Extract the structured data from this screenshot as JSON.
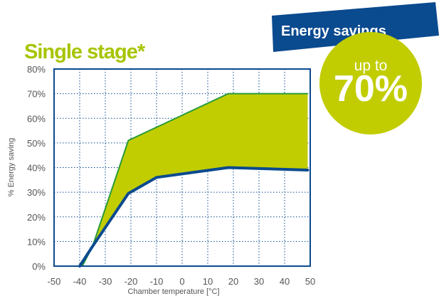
{
  "banner": {
    "text": "Energy savings",
    "color": "#0a4a8f"
  },
  "badge": {
    "prefix": "up to",
    "value": "70%",
    "color": "#c1cd00"
  },
  "chart_data": {
    "type": "area",
    "title": "Single stage*",
    "xlabel": "Chamber temperature [°C]",
    "ylabel": "% Energy saving",
    "xlim": [
      -50,
      50
    ],
    "ylim": [
      0,
      80
    ],
    "x_ticks": [
      "-50",
      "-40",
      "-30",
      "-20",
      "-10",
      "0",
      "10",
      "20",
      "30",
      "40",
      "50"
    ],
    "y_ticks": [
      "0%",
      "10%",
      "20%",
      "30%",
      "40%",
      "50%",
      "60%",
      "70%",
      "80%"
    ],
    "grid": true,
    "series": [
      {
        "values_xy": [
          [
            -39,
            0
          ],
          [
            -35,
            8
          ],
          [
            -21,
            51
          ],
          [
            18,
            70
          ],
          [
            49,
            70
          ]
        ],
        "color": "#2a9a3a"
      },
      {
        "values_xy": [
          [
            -40,
            0
          ],
          [
            -35,
            8
          ],
          [
            -21,
            29.5
          ],
          [
            -10,
            36
          ],
          [
            18,
            40
          ],
          [
            49,
            39
          ]
        ],
        "color": "#0a4a8f"
      }
    ],
    "fill_color": "#c1cd00",
    "title_color": "#a8c400",
    "axis_color": "#0a4a8f"
  }
}
